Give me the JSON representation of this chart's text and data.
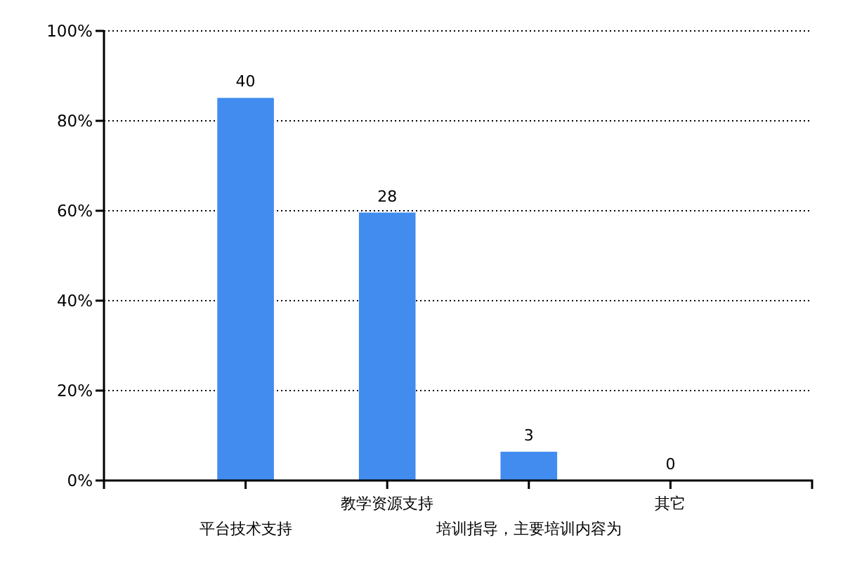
{
  "chart_data": {
    "type": "bar",
    "categories": [
      "平台技术支持",
      "教学资源支持",
      "培训指导，主要培训内容为",
      "其它"
    ],
    "values": [
      85.1,
      59.6,
      6.4,
      0
    ],
    "color": "#428cf0",
    "ylim": [
      0,
      100
    ],
    "yticks": [
      {
        "value": 0,
        "label": "0%"
      },
      {
        "value": 20,
        "label": "20%"
      },
      {
        "value": 40,
        "label": "40%"
      },
      {
        "value": 60,
        "label": "60%"
      },
      {
        "value": 80,
        "label": "80%"
      },
      {
        "value": 100,
        "label": "100%"
      }
    ],
    "grid": "y",
    "annotations": [
      {
        "text": "40",
        "x": "平台技术支持",
        "y": 85.1
      },
      {
        "text": "28",
        "x": "教学资源支持",
        "y": 59.6
      },
      {
        "text": "3",
        "x": "培训指导，主要培训内容为",
        "y": 6.4
      },
      {
        "text": "0",
        "x": "其它",
        "y": 0
      }
    ]
  }
}
